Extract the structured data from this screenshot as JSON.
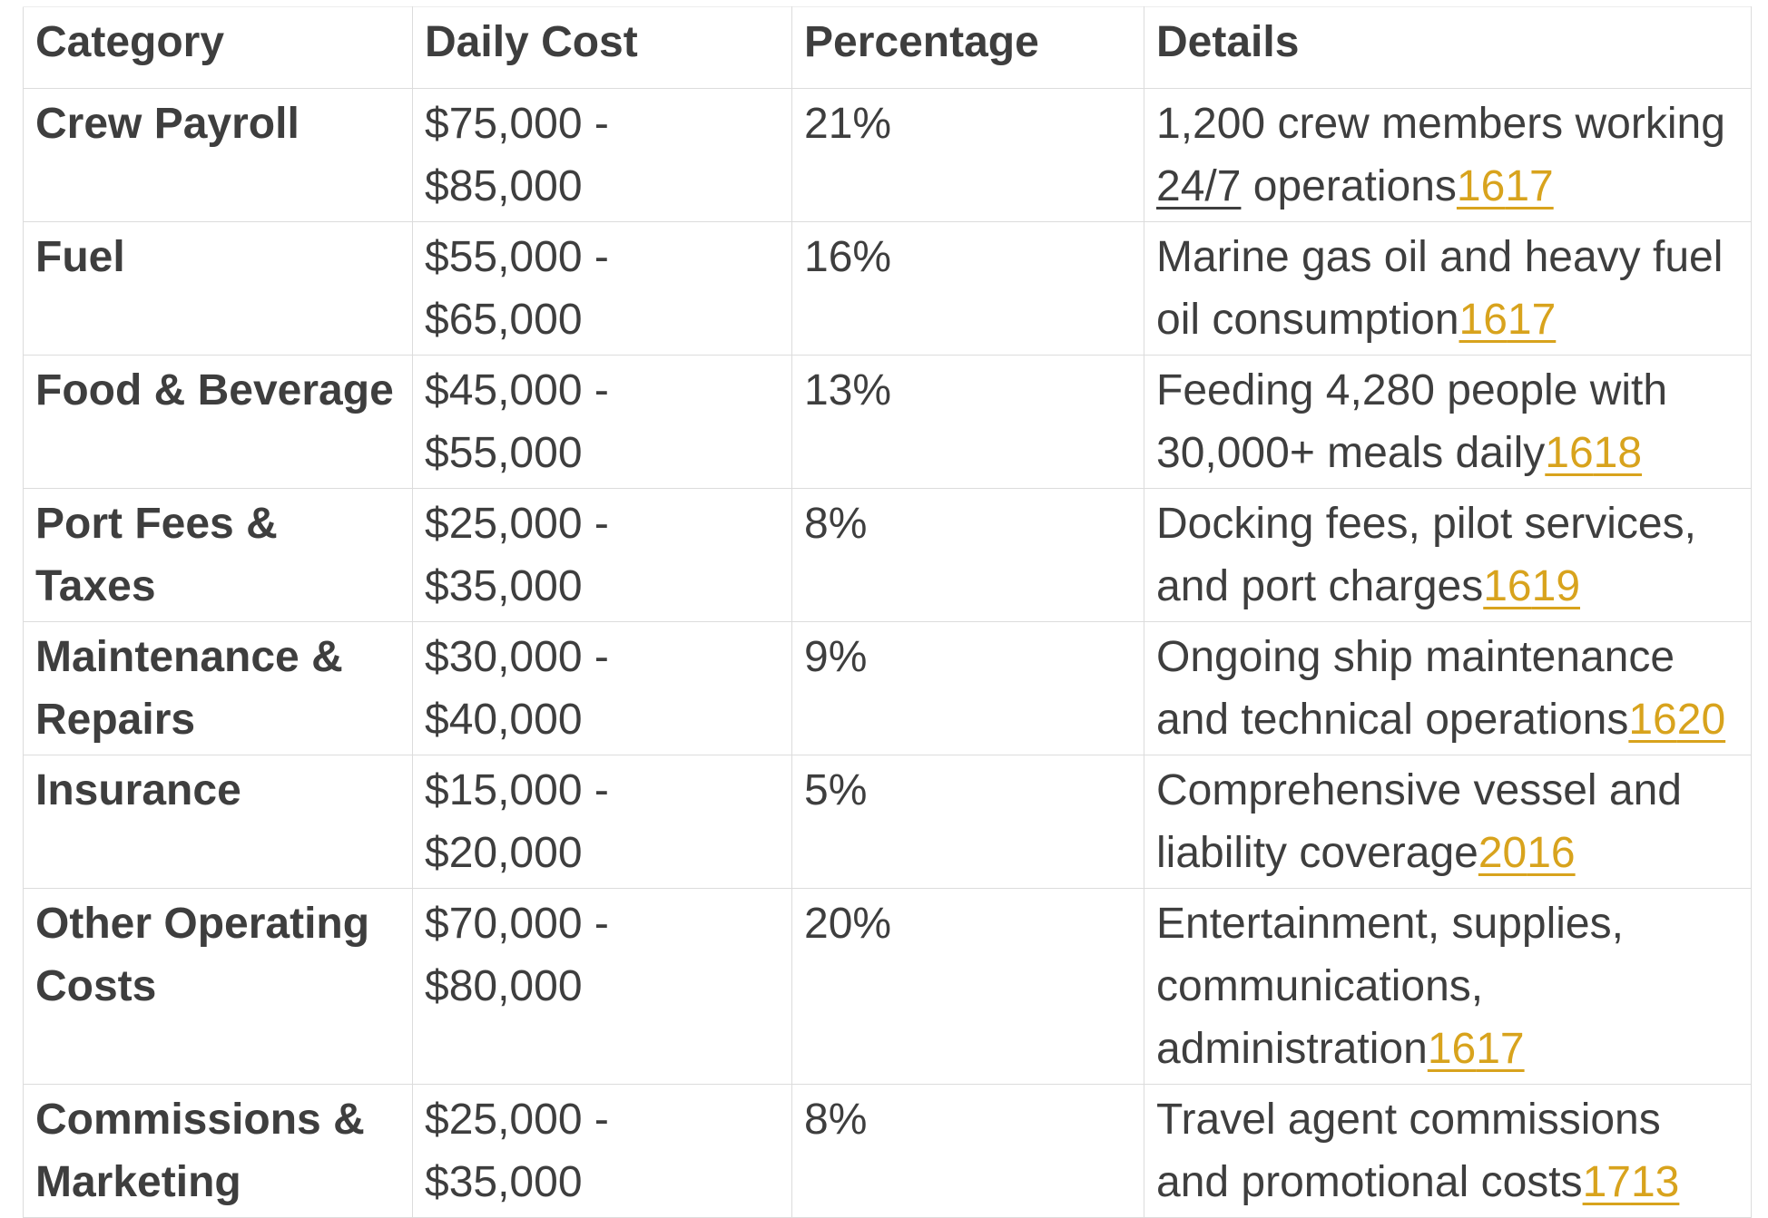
{
  "colors": {
    "citation_link": "#d8a31d",
    "body_text": "#3e3e3e",
    "grid_border": "#dcdcdc"
  },
  "table": {
    "headers": [
      "Category",
      "Daily Cost",
      "Percentage",
      "Details"
    ],
    "rows": [
      {
        "category": "Crew Payroll",
        "daily_cost": "$75,000 -\n$85,000",
        "percentage": "21%",
        "details": {
          "segments": [
            {
              "text": "1,200 crew members working\n"
            },
            {
              "text": "24/7",
              "underline": true
            },
            {
              "text": " operations"
            }
          ]
        },
        "citations": [
          "16",
          "17"
        ]
      },
      {
        "category": "Fuel",
        "daily_cost": "$55,000 -\n$65,000",
        "percentage": "16%",
        "details": {
          "segments": [
            {
              "text": "Marine gas oil and heavy fuel\noil consumption"
            }
          ]
        },
        "citations": [
          "16",
          "17"
        ]
      },
      {
        "category": "Food & Beverage",
        "daily_cost": "$45,000 -\n$55,000",
        "percentage": "13%",
        "details": {
          "segments": [
            {
              "text": "Feeding 4,280 people with\n30,000+ meals daily"
            }
          ]
        },
        "citations": [
          "16",
          "18"
        ]
      },
      {
        "category": "Port Fees & Taxes",
        "daily_cost": "$25,000 -\n$35,000",
        "percentage": "8%",
        "details": {
          "segments": [
            {
              "text": "Docking fees, pilot services,\nand port charges"
            }
          ]
        },
        "citations": [
          "16",
          "19"
        ]
      },
      {
        "category": "Maintenance &\nRepairs",
        "daily_cost": "$30,000 -\n$40,000",
        "percentage": "9%",
        "details": {
          "segments": [
            {
              "text": "Ongoing ship maintenance\nand technical operations"
            }
          ]
        },
        "citations": [
          "16",
          "20"
        ]
      },
      {
        "category": "Insurance",
        "daily_cost": "$15,000 -\n$20,000",
        "percentage": "5%",
        "details": {
          "segments": [
            {
              "text": "Comprehensive vessel and\nliability coverage"
            }
          ]
        },
        "citations": [
          "20",
          "16"
        ]
      },
      {
        "category": "Other Operating\nCosts",
        "daily_cost": "$70,000 -\n$80,000",
        "percentage": "20%",
        "details": {
          "segments": [
            {
              "text": "Entertainment, supplies,\ncommunications,\nadministration"
            }
          ]
        },
        "citations": [
          "16",
          "17"
        ]
      },
      {
        "category": "Commissions &\nMarketing",
        "daily_cost": "$25,000 -\n$35,000",
        "percentage": "8%",
        "details": {
          "segments": [
            {
              "text": "Travel agent commissions\nand promotional costs"
            }
          ]
        },
        "citations": [
          "17",
          "13"
        ]
      }
    ]
  }
}
